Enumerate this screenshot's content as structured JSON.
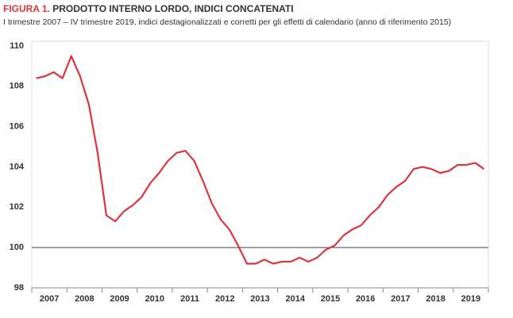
{
  "chart_data": {
    "type": "line",
    "figure_label": "FIGURA 1.",
    "title": "PRODOTTO INTERNO LORDO, INDICI CONCATENATI",
    "subtitle": "I trimestre 2007 – IV trimestre 2019, indici destagionalizzati e corretti per gli effetti di calendario (anno di riferimento 2015)",
    "categories": [
      "2007",
      null,
      null,
      null,
      "2008",
      null,
      null,
      null,
      "2009",
      null,
      null,
      null,
      "2010",
      null,
      null,
      null,
      "2011",
      null,
      null,
      null,
      "2012",
      null,
      null,
      null,
      "2013",
      null,
      null,
      null,
      "2014",
      null,
      null,
      null,
      "2015",
      null,
      null,
      null,
      "2016",
      null,
      null,
      null,
      "2017",
      null,
      null,
      null,
      "2018",
      null,
      null,
      null,
      "2019",
      null,
      null,
      null
    ],
    "values": [
      108.4,
      108.5,
      108.7,
      108.4,
      109.5,
      108.5,
      107.1,
      104.7,
      101.6,
      101.3,
      101.8,
      102.1,
      102.5,
      103.2,
      103.7,
      104.3,
      104.7,
      104.8,
      104.3,
      103.3,
      102.2,
      101.4,
      100.9,
      100.1,
      99.2,
      99.2,
      99.4,
      99.2,
      99.3,
      99.3,
      99.5,
      99.3,
      99.5,
      99.9,
      100.1,
      100.6,
      100.9,
      101.1,
      101.6,
      102.0,
      102.6,
      103.0,
      103.3,
      103.9,
      104.0,
      103.9,
      103.7,
      103.8,
      104.1,
      104.1,
      104.2,
      103.9
    ],
    "color": "#d9363e",
    "ylim": [
      98,
      110
    ],
    "yticks": [
      98,
      100,
      102,
      104,
      106,
      108,
      110
    ],
    "reference_line": 100,
    "grid": false
  }
}
